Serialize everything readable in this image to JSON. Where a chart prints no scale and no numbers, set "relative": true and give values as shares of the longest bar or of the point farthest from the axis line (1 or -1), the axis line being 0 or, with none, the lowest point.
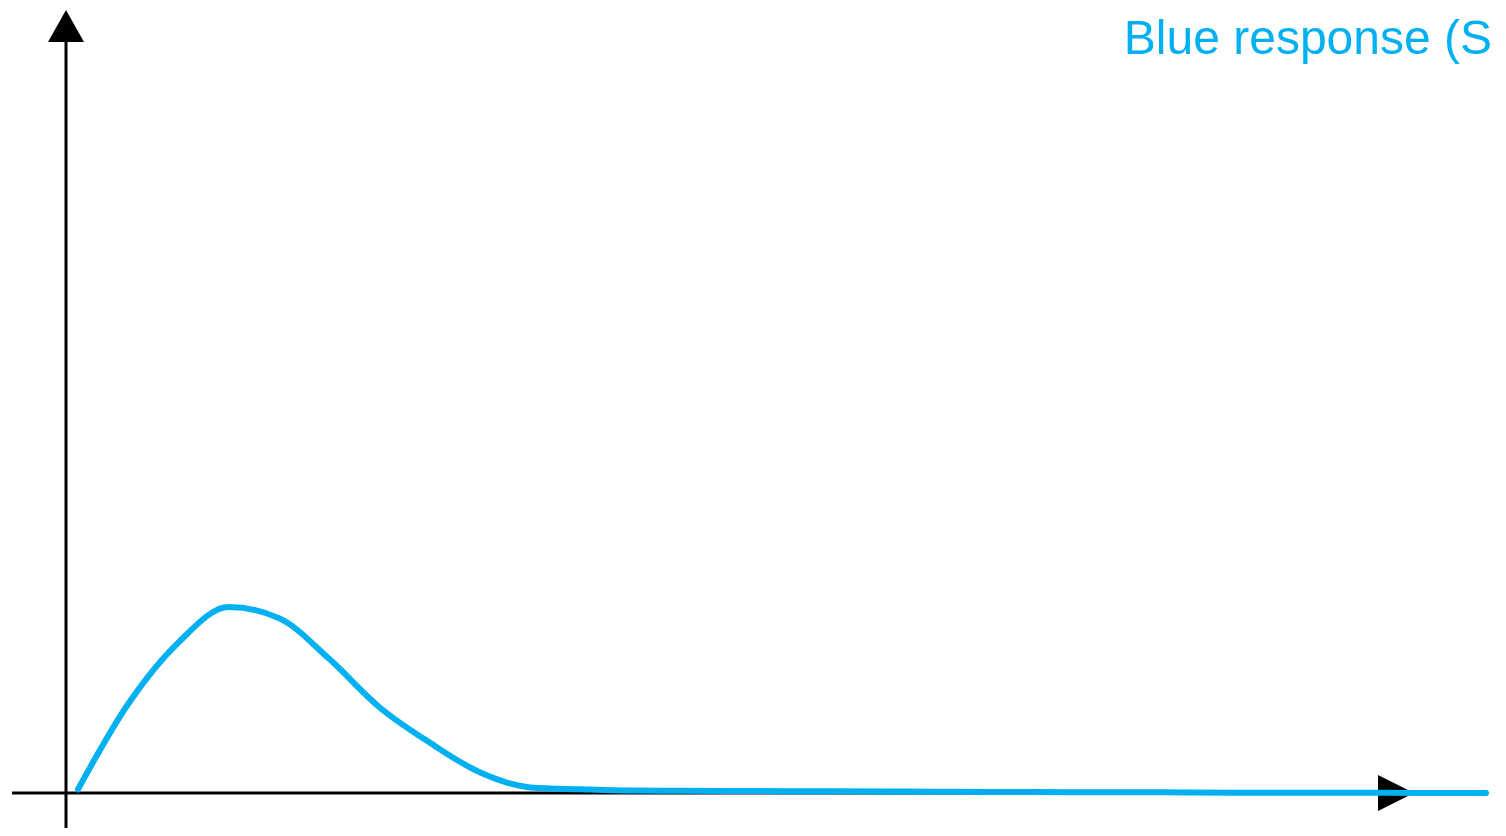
{
  "chart_data": {
    "type": "line",
    "relative": true,
    "legend": false,
    "line_style": "solid",
    "marker": "none",
    "categories": [
      null,
      null,
      null,
      null,
      null,
      null,
      null,
      null,
      null,
      null,
      null,
      null,
      null,
      null,
      null,
      null,
      null,
      null,
      null,
      null,
      null,
      null,
      null,
      null,
      null,
      null,
      null,
      null,
      null
    ],
    "series": [
      {
        "name": "Blue response (S",
        "color": "#00b0f0",
        "values": [
          0.02,
          0.48,
          0.81,
          1,
          0.94,
          0.72,
          0.46,
          0.27,
          0.11,
          0.03,
          0.02,
          0.013,
          0.012,
          0.011,
          0.01,
          0.009,
          0.008,
          0.007,
          0.006,
          0.005,
          0.004,
          0.004,
          0.003,
          0.002,
          0.002,
          0.001,
          0.001,
          0,
          0
        ]
      }
    ]
  }
}
